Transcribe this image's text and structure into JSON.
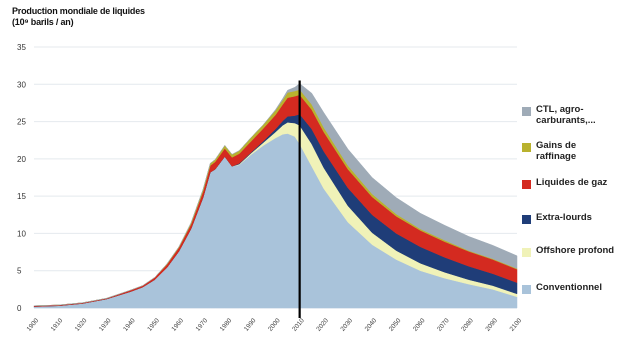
{
  "chart_data": {
    "type": "area",
    "title": "Production mondiale de liquides",
    "subtitle": "(10⁹ barils / an)",
    "ylim": [
      0,
      35
    ],
    "yticks": [
      0,
      5,
      10,
      15,
      20,
      25,
      30,
      35
    ],
    "xlim": [
      1900,
      2100
    ],
    "xticks": [
      1900,
      1910,
      1920,
      1930,
      1940,
      1950,
      1960,
      1970,
      1980,
      1990,
      2000,
      2010,
      2020,
      2030,
      2040,
      2050,
      2060,
      2070,
      2080,
      2090,
      2100
    ],
    "x": [
      1900,
      1910,
      1920,
      1930,
      1940,
      1945,
      1950,
      1955,
      1960,
      1965,
      1970,
      1973,
      1975,
      1979,
      1982,
      1985,
      1990,
      1995,
      2000,
      2003,
      2005,
      2008,
      2010,
      2015,
      2020,
      2030,
      2040,
      2050,
      2060,
      2070,
      2080,
      2090,
      2100
    ],
    "series": [
      {
        "name": "Conventionnel",
        "color": "#a9c3da",
        "values": [
          0.2,
          0.3,
          0.6,
          1.2,
          2.2,
          2.8,
          3.8,
          5.4,
          7.6,
          10.6,
          14.8,
          18.2,
          18.6,
          20.3,
          19.0,
          19.2,
          20.6,
          21.8,
          22.8,
          23.3,
          23.4,
          23.0,
          22.0,
          19.0,
          16.0,
          11.5,
          8.5,
          6.5,
          5.0,
          4.0,
          3.2,
          2.5,
          1.5
        ]
      },
      {
        "name": "Offshore profond",
        "color": "#f0f2b8",
        "values": [
          0,
          0,
          0,
          0,
          0,
          0,
          0,
          0,
          0,
          0,
          0,
          0,
          0,
          0,
          0,
          0.1,
          0.2,
          0.4,
          0.8,
          1.2,
          1.5,
          1.8,
          2.5,
          3.0,
          2.8,
          2.2,
          1.6,
          1.2,
          1.0,
          0.8,
          0.6,
          0.5,
          0.4
        ]
      },
      {
        "name": "Extra-lourds",
        "color": "#1f3d78",
        "values": [
          0,
          0,
          0,
          0,
          0,
          0,
          0,
          0,
          0,
          0,
          0,
          0,
          0,
          0,
          0,
          0.1,
          0.1,
          0.2,
          0.4,
          0.6,
          0.8,
          1.0,
          1.5,
          2.0,
          2.2,
          2.4,
          2.4,
          2.3,
          2.2,
          2.0,
          1.8,
          1.6,
          1.5
        ]
      },
      {
        "name": "Liquides de gaz",
        "color": "#d42a20",
        "values": [
          0.1,
          0.1,
          0.1,
          0.1,
          0.2,
          0.2,
          0.3,
          0.4,
          0.5,
          0.6,
          0.8,
          0.9,
          1.0,
          1.1,
          1.2,
          1.3,
          1.5,
          1.7,
          1.9,
          2.2,
          2.5,
          2.6,
          2.6,
          2.6,
          2.6,
          2.5,
          2.4,
          2.3,
          2.2,
          2.1,
          2.0,
          1.9,
          1.8
        ]
      },
      {
        "name": "Gains de raffinage",
        "color": "#b9b22e",
        "values": [
          0,
          0,
          0,
          0,
          0,
          0,
          0,
          0.1,
          0.1,
          0.2,
          0.3,
          0.3,
          0.3,
          0.4,
          0.4,
          0.4,
          0.5,
          0.5,
          0.6,
          0.6,
          0.7,
          0.7,
          0.7,
          0.7,
          0.6,
          0.5,
          0.4,
          0.3,
          0.2,
          0.2,
          0.1,
          0.1,
          0.1
        ]
      },
      {
        "name": "CTL, agro-carburants,...",
        "color": "#9fabb7",
        "values": [
          0,
          0,
          0,
          0,
          0,
          0,
          0,
          0,
          0,
          0,
          0,
          0,
          0,
          0,
          0,
          0,
          0,
          0,
          0.1,
          0.2,
          0.3,
          0.5,
          0.8,
          1.5,
          2.0,
          2.2,
          2.2,
          2.2,
          2.1,
          2.0,
          1.9,
          1.8,
          1.7
        ]
      }
    ],
    "legend": {
      "position": "right",
      "items": [
        {
          "label": "CTL, agro-carburants,...",
          "color": "#9fabb7"
        },
        {
          "label": "Gains de raffinage",
          "color": "#b9b22e"
        },
        {
          "label": "Liquides de gaz",
          "color": "#d42a20"
        },
        {
          "label": "Extra-lourds",
          "color": "#1f3d78"
        },
        {
          "label": "Offshore profond",
          "color": "#f0f2b8"
        },
        {
          "label": "Conventionnel",
          "color": "#a9c3da"
        }
      ]
    },
    "marker_line_x": 2010,
    "grid": true
  }
}
